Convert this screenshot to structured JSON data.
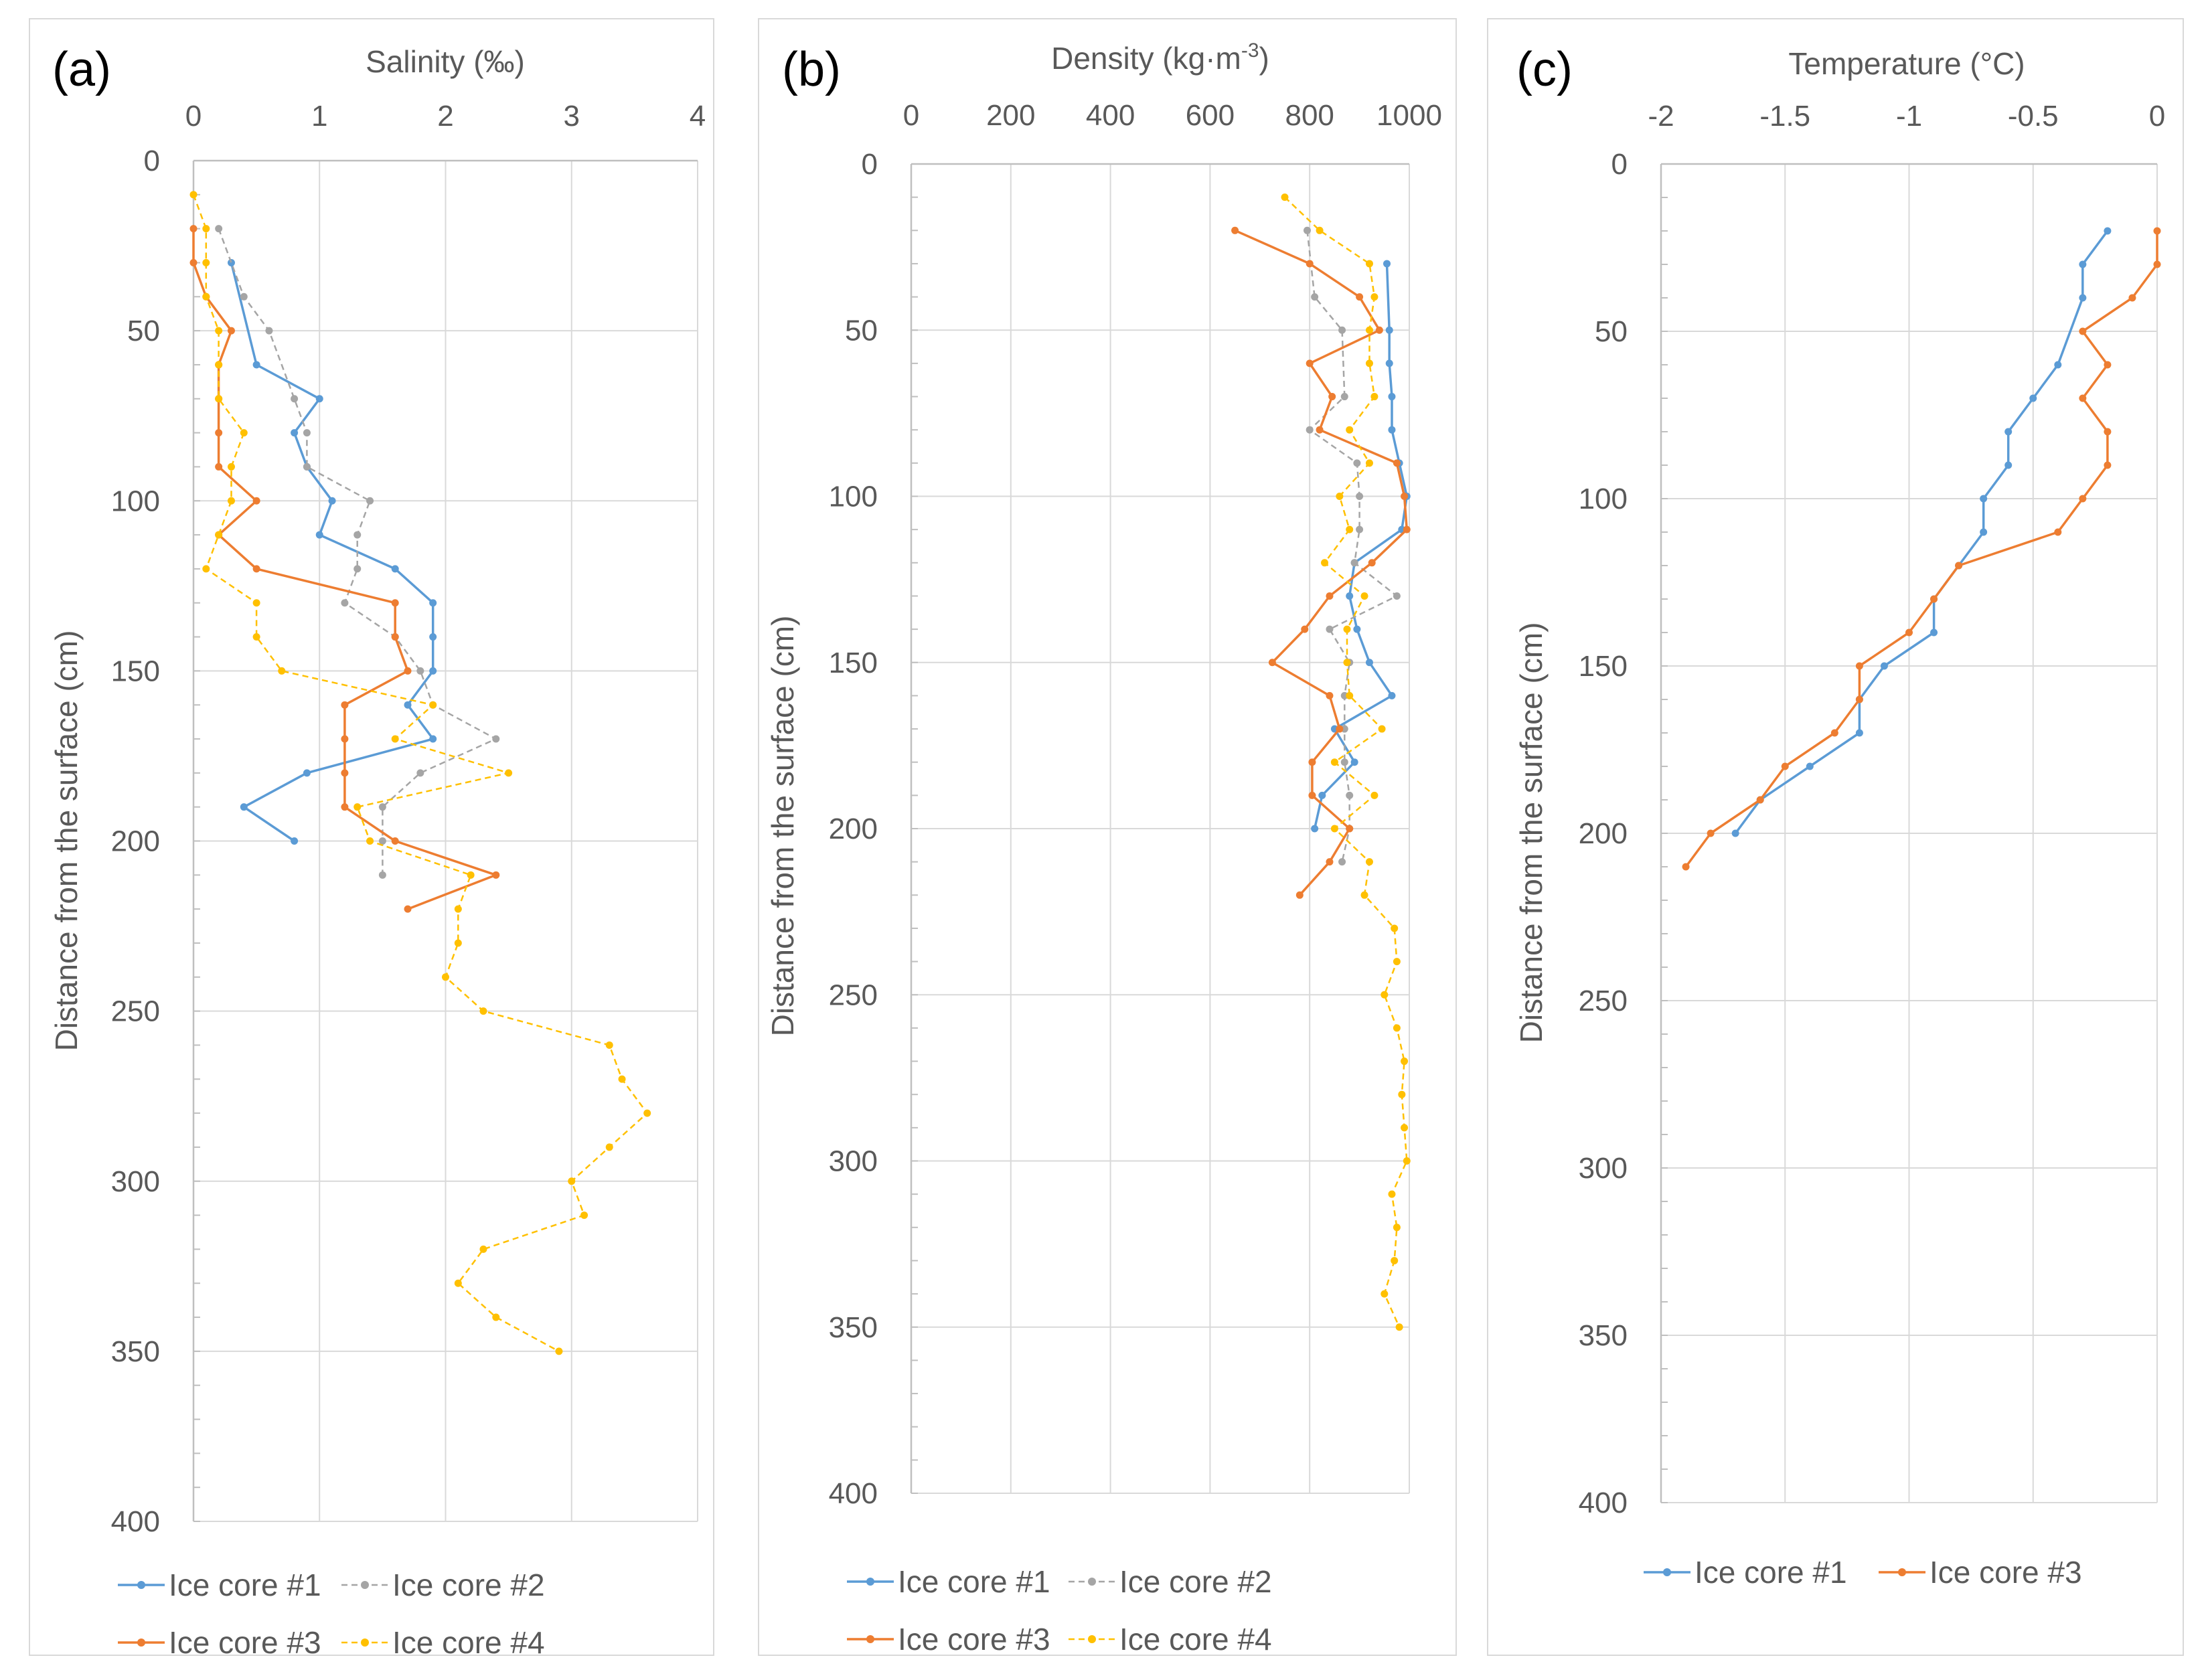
{
  "chart_data": [
    {
      "type": "line",
      "panel_label": "(a)",
      "xlabel": "Salinity (‰)",
      "ylabel": "Distance from the surface (cm)",
      "xlim": [
        0,
        4
      ],
      "ylim": [
        0,
        400
      ],
      "xticks": [
        0,
        1,
        2,
        3,
        4
      ],
      "yticks": [
        0,
        50,
        100,
        150,
        200,
        250,
        300,
        350,
        400
      ],
      "x_axis_position": "top",
      "y_inverted": true,
      "grid": true,
      "legend": "bottom",
      "series": [
        {
          "name": "Ice core #1",
          "color": "#5B9BD5",
          "dash": "solid",
          "points": [
            [
              0.3,
              30
            ],
            [
              0.5,
              60
            ],
            [
              1.0,
              70
            ],
            [
              0.8,
              80
            ],
            [
              0.9,
              90
            ],
            [
              1.1,
              100
            ],
            [
              1.0,
              110
            ],
            [
              1.6,
              120
            ],
            [
              1.9,
              130
            ],
            [
              1.9,
              140
            ],
            [
              1.9,
              150
            ],
            [
              1.7,
              160
            ],
            [
              1.9,
              170
            ],
            [
              0.9,
              180
            ],
            [
              0.4,
              190
            ],
            [
              0.8,
              200
            ]
          ]
        },
        {
          "name": "Ice core #2",
          "color": "#A5A5A5",
          "dash": "dashed",
          "points": [
            [
              0.2,
              20
            ],
            [
              0.4,
              40
            ],
            [
              0.6,
              50
            ],
            [
              0.8,
              70
            ],
            [
              0.9,
              80
            ],
            [
              0.9,
              90
            ],
            [
              1.4,
              100
            ],
            [
              1.3,
              110
            ],
            [
              1.3,
              120
            ],
            [
              1.2,
              130
            ],
            [
              1.6,
              140
            ],
            [
              1.8,
              150
            ],
            [
              1.9,
              160
            ],
            [
              2.4,
              170
            ],
            [
              1.8,
              180
            ],
            [
              1.5,
              190
            ],
            [
              1.5,
              200
            ],
            [
              1.5,
              210
            ]
          ]
        },
        {
          "name": "Ice core #3",
          "color": "#ED7D31",
          "dash": "solid",
          "points": [
            [
              0.0,
              20
            ],
            [
              0.0,
              30
            ],
            [
              0.1,
              40
            ],
            [
              0.3,
              50
            ],
            [
              0.2,
              60
            ],
            [
              0.2,
              70
            ],
            [
              0.2,
              80
            ],
            [
              0.2,
              90
            ],
            [
              0.5,
              100
            ],
            [
              0.2,
              110
            ],
            [
              0.5,
              120
            ],
            [
              1.6,
              130
            ],
            [
              1.6,
              140
            ],
            [
              1.7,
              150
            ],
            [
              1.2,
              160
            ],
            [
              1.2,
              170
            ],
            [
              1.2,
              180
            ],
            [
              1.2,
              190
            ],
            [
              1.6,
              200
            ],
            [
              2.4,
              210
            ],
            [
              1.7,
              220
            ]
          ]
        },
        {
          "name": "Ice core #4",
          "color": "#FFC000",
          "dash": "dashed",
          "points": [
            [
              0.0,
              10
            ],
            [
              0.1,
              20
            ],
            [
              0.1,
              30
            ],
            [
              0.1,
              40
            ],
            [
              0.2,
              50
            ],
            [
              0.2,
              60
            ],
            [
              0.2,
              70
            ],
            [
              0.4,
              80
            ],
            [
              0.3,
              90
            ],
            [
              0.3,
              100
            ],
            [
              0.2,
              110
            ],
            [
              0.1,
              120
            ],
            [
              0.5,
              130
            ],
            [
              0.5,
              140
            ],
            [
              0.7,
              150
            ],
            [
              1.9,
              160
            ],
            [
              1.6,
              170
            ],
            [
              2.5,
              180
            ],
            [
              1.3,
              190
            ],
            [
              1.4,
              200
            ],
            [
              2.2,
              210
            ],
            [
              2.1,
              220
            ],
            [
              2.1,
              230
            ],
            [
              2.0,
              240
            ],
            [
              2.3,
              250
            ],
            [
              3.3,
              260
            ],
            [
              3.4,
              270
            ],
            [
              3.6,
              280
            ],
            [
              3.3,
              290
            ],
            [
              3.0,
              300
            ],
            [
              3.1,
              310
            ],
            [
              2.3,
              320
            ],
            [
              2.1,
              330
            ],
            [
              2.4,
              340
            ],
            [
              2.9,
              350
            ]
          ]
        }
      ]
    },
    {
      "type": "line",
      "panel_label": "(b)",
      "xlabel_main": "Density (kg·m",
      "xlabel_sup": "-3",
      "xlabel_tail": ")",
      "ylabel": "Distance from the surface (cm)",
      "xlim": [
        0,
        1000
      ],
      "ylim": [
        0,
        400
      ],
      "xticks": [
        0,
        200,
        400,
        600,
        800,
        1000
      ],
      "yticks": [
        0,
        50,
        100,
        150,
        200,
        250,
        300,
        350,
        400
      ],
      "x_axis_position": "top",
      "y_inverted": true,
      "grid": true,
      "legend": "bottom",
      "series": [
        {
          "name": "Ice core #1",
          "color": "#5B9BD5",
          "dash": "solid",
          "points": [
            [
              955,
              30
            ],
            [
              960,
              50
            ],
            [
              960,
              60
            ],
            [
              965,
              70
            ],
            [
              965,
              80
            ],
            [
              980,
              90
            ],
            [
              995,
              100
            ],
            [
              985,
              110
            ],
            [
              890,
              120
            ],
            [
              880,
              130
            ],
            [
              895,
              140
            ],
            [
              920,
              150
            ],
            [
              965,
              160
            ],
            [
              850,
              170
            ],
            [
              890,
              180
            ],
            [
              825,
              190
            ],
            [
              810,
              200
            ]
          ]
        },
        {
          "name": "Ice core #2",
          "color": "#A5A5A5",
          "dash": "dashed",
          "points": [
            [
              795,
              20
            ],
            [
              810,
              40
            ],
            [
              865,
              50
            ],
            [
              870,
              70
            ],
            [
              800,
              80
            ],
            [
              895,
              90
            ],
            [
              900,
              100
            ],
            [
              900,
              110
            ],
            [
              890,
              120
            ],
            [
              975,
              130
            ],
            [
              840,
              140
            ],
            [
              880,
              150
            ],
            [
              870,
              160
            ],
            [
              870,
              170
            ],
            [
              870,
              180
            ],
            [
              880,
              190
            ],
            [
              880,
              200
            ],
            [
              865,
              210
            ]
          ]
        },
        {
          "name": "Ice core #3",
          "color": "#ED7D31",
          "dash": "solid",
          "points": [
            [
              650,
              20
            ],
            [
              800,
              30
            ],
            [
              900,
              40
            ],
            [
              940,
              50
            ],
            [
              800,
              60
            ],
            [
              845,
              70
            ],
            [
              820,
              80
            ],
            [
              975,
              90
            ],
            [
              990,
              100
            ],
            [
              995,
              110
            ],
            [
              925,
              120
            ],
            [
              840,
              130
            ],
            [
              790,
              140
            ],
            [
              725,
              150
            ],
            [
              840,
              160
            ],
            [
              860,
              170
            ],
            [
              805,
              180
            ],
            [
              805,
              190
            ],
            [
              880,
              200
            ],
            [
              840,
              210
            ],
            [
              780,
              220
            ]
          ]
        },
        {
          "name": "Ice core #4",
          "color": "#FFC000",
          "dash": "dashed",
          "points": [
            [
              750,
              10
            ],
            [
              820,
              20
            ],
            [
              920,
              30
            ],
            [
              930,
              40
            ],
            [
              920,
              50
            ],
            [
              920,
              60
            ],
            [
              930,
              70
            ],
            [
              880,
              80
            ],
            [
              920,
              90
            ],
            [
              860,
              100
            ],
            [
              880,
              110
            ],
            [
              830,
              120
            ],
            [
              910,
              130
            ],
            [
              875,
              140
            ],
            [
              875,
              150
            ],
            [
              880,
              160
            ],
            [
              945,
              170
            ],
            [
              850,
              180
            ],
            [
              930,
              190
            ],
            [
              850,
              200
            ],
            [
              920,
              210
            ],
            [
              910,
              220
            ],
            [
              970,
              230
            ],
            [
              975,
              240
            ],
            [
              950,
              250
            ],
            [
              975,
              260
            ],
            [
              990,
              270
            ],
            [
              985,
              280
            ],
            [
              990,
              290
            ],
            [
              995,
              300
            ],
            [
              965,
              310
            ],
            [
              975,
              320
            ],
            [
              970,
              330
            ],
            [
              950,
              340
            ],
            [
              980,
              350
            ]
          ]
        }
      ]
    },
    {
      "type": "line",
      "panel_label": "(c)",
      "xlabel": "Temperature (°C)",
      "ylabel": "Distance from the surface (cm)",
      "xlim": [
        -2,
        0
      ],
      "ylim": [
        0,
        400
      ],
      "xticks": [
        -2,
        -1.5,
        -1,
        -0.5,
        0
      ],
      "yticks": [
        0,
        50,
        100,
        150,
        200,
        250,
        300,
        350,
        400
      ],
      "x_axis_position": "top",
      "y_inverted": true,
      "grid": true,
      "legend": "bottom",
      "series": [
        {
          "name": "Ice core #1",
          "color": "#5B9BD5",
          "dash": "solid",
          "points": [
            [
              -0.2,
              20
            ],
            [
              -0.3,
              30
            ],
            [
              -0.3,
              40
            ],
            [
              -0.4,
              60
            ],
            [
              -0.5,
              70
            ],
            [
              -0.6,
              80
            ],
            [
              -0.6,
              90
            ],
            [
              -0.7,
              100
            ],
            [
              -0.7,
              110
            ],
            [
              -0.8,
              120
            ],
            [
              -0.9,
              130
            ],
            [
              -0.9,
              140
            ],
            [
              -1.1,
              150
            ],
            [
              -1.2,
              160
            ],
            [
              -1.2,
              170
            ],
            [
              -1.4,
              180
            ],
            [
              -1.6,
              190
            ],
            [
              -1.7,
              200
            ]
          ]
        },
        {
          "name": "Ice core #3",
          "color": "#ED7D31",
          "dash": "solid",
          "points": [
            [
              0.0,
              20
            ],
            [
              0.0,
              30
            ],
            [
              -0.1,
              40
            ],
            [
              -0.3,
              50
            ],
            [
              -0.2,
              60
            ],
            [
              -0.3,
              70
            ],
            [
              -0.2,
              80
            ],
            [
              -0.2,
              90
            ],
            [
              -0.3,
              100
            ],
            [
              -0.4,
              110
            ],
            [
              -0.8,
              120
            ],
            [
              -0.9,
              130
            ],
            [
              -1.0,
              140
            ],
            [
              -1.2,
              150
            ],
            [
              -1.2,
              160
            ],
            [
              -1.3,
              170
            ],
            [
              -1.5,
              180
            ],
            [
              -1.6,
              190
            ],
            [
              -1.8,
              200
            ],
            [
              -1.9,
              210
            ]
          ]
        }
      ]
    }
  ]
}
